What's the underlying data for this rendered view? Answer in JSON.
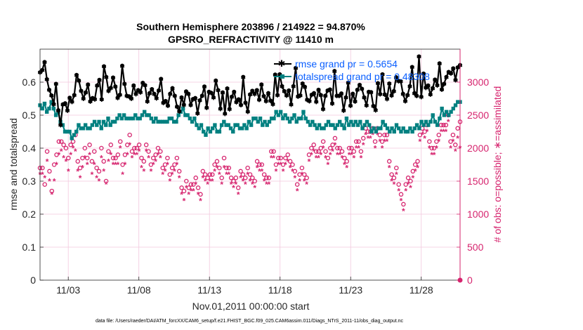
{
  "chart_data": {
    "type": "line",
    "title": "Southern Hemisphere 203896 / 214922 = 94.870%",
    "subtitle": "GPSRO_REFRACTIVITY @ 11410 m",
    "xlabel": "Nov.01,2011 00:00:00 start",
    "ylabel_left": "rmse and totalspread",
    "ylabel_right": "# of obs: o=possible; ∗=assimilated",
    "footnote": "data file: /Users/raeder/DAI/ATM_forcXX/CAM6_setup/f.e21.FHIST_BGC.f09_025.CAM6assim.011/Diags_NTrS_2011-11/obs_diag_output.nc",
    "x_range": [
      1,
      30.75
    ],
    "x_tick_values": [
      3,
      8,
      13,
      18,
      23,
      28
    ],
    "x_tick_labels": [
      "11/03",
      "11/08",
      "11/13",
      "11/18",
      "11/23",
      "11/28"
    ],
    "ylim_left": [
      0,
      0.7
    ],
    "left_ticks": [
      0,
      0.1,
      0.2,
      0.3,
      0.4,
      0.5,
      0.6
    ],
    "left_tick_labels": [
      "0",
      "0.1",
      "0.2",
      "0.3",
      "0.4",
      "0.5",
      "0.6"
    ],
    "ylim_right": [
      0,
      3500
    ],
    "right_ticks": [
      0,
      500,
      1000,
      1500,
      2000,
      2500,
      3000
    ],
    "right_tick_labels": [
      "0",
      "500",
      "1000",
      "1500",
      "2000",
      "2500",
      "3000"
    ],
    "grid": true,
    "legend_position": "top-right",
    "colors": {
      "rmse": "#000000",
      "spread": "#008080",
      "obs": "#d6246e",
      "legend_text": "#0a5fff"
    },
    "series": [
      {
        "name": "rmse grand pr = 0.5654",
        "axis": "left",
        "marker": "star-filled",
        "values": [
          0.63,
          0.637,
          0.661,
          0.609,
          0.577,
          0.56,
          0.534,
          0.595,
          0.515,
          0.471,
          0.533,
          0.536,
          0.515,
          0.553,
          0.541,
          0.561,
          0.622,
          0.605,
          0.574,
          0.551,
          0.569,
          0.593,
          0.542,
          0.552,
          0.549,
          0.59,
          0.607,
          0.548,
          0.648,
          0.616,
          0.574,
          0.583,
          0.614,
          0.587,
          0.553,
          0.562,
          0.65,
          0.595,
          0.559,
          0.557,
          0.551,
          0.59,
          0.565,
          0.576,
          0.57,
          0.598,
          0.591,
          0.542,
          0.567,
          0.579,
          0.565,
          0.552,
          0.575,
          0.61,
          0.538,
          0.543,
          0.529,
          0.565,
          0.582,
          0.559,
          0.526,
          0.512,
          0.554,
          0.532,
          0.572,
          0.565,
          0.531,
          0.549,
          0.552,
          0.506,
          0.545,
          0.559,
          0.587,
          0.523,
          0.571,
          0.568,
          0.554,
          0.605,
          0.576,
          0.52,
          0.569,
          0.505,
          0.581,
          0.519,
          0.556,
          0.571,
          0.54,
          0.548,
          0.531,
          0.616,
          0.538,
          0.511,
          0.563,
          0.574,
          0.565,
          0.576,
          0.547,
          0.593,
          0.558,
          0.543,
          0.567,
          0.544,
          0.534,
          0.623,
          0.561,
          0.624,
          0.588,
          0.573,
          0.56,
          0.575,
          0.533,
          0.588,
          0.643,
          0.557,
          0.56,
          0.596,
          0.586,
          0.547,
          0.543,
          0.562,
          0.567,
          0.541,
          0.577,
          0.561,
          0.519,
          0.559,
          0.575,
          0.578,
          0.536,
          0.634,
          0.559,
          0.559,
          0.566,
          0.515,
          0.554,
          0.599,
          0.529,
          0.565,
          0.542,
          0.577,
          0.592,
          0.58,
          0.554,
          0.53,
          0.571,
          0.57,
          0.528,
          0.516,
          0.597,
          0.564,
          0.624,
          0.563,
          0.55,
          0.596,
          0.56,
          0.573,
          0.615,
          0.604,
          0.603,
          0.565,
          0.543,
          0.561,
          0.588,
          0.646,
          0.567,
          0.559,
          0.678,
          0.556,
          0.626,
          0.584,
          0.59,
          0.563,
          0.582,
          0.608,
          0.591,
          0.657,
          0.578,
          0.595,
          0.616,
          0.631,
          0.627,
          0.642,
          0.607,
          0.645,
          0.652
        ]
      },
      {
        "name": "totalspread grand pr = 0.48308",
        "axis": "left",
        "marker": "square-filled",
        "values": [
          0.53,
          0.52,
          0.535,
          0.51,
          0.52,
          0.54,
          0.52,
          0.5,
          0.51,
          0.48,
          0.47,
          0.45,
          0.45,
          0.45,
          0.43,
          0.44,
          0.45,
          0.47,
          0.46,
          0.46,
          0.47,
          0.46,
          0.46,
          0.47,
          0.48,
          0.47,
          0.48,
          0.46,
          0.48,
          0.47,
          0.49,
          0.47,
          0.48,
          0.48,
          0.49,
          0.5,
          0.49,
          0.5,
          0.49,
          0.49,
          0.49,
          0.49,
          0.5,
          0.49,
          0.49,
          0.5,
          0.51,
          0.5,
          0.5,
          0.49,
          0.48,
          0.49,
          0.48,
          0.48,
          0.48,
          0.48,
          0.48,
          0.49,
          0.49,
          0.48,
          0.48,
          0.5,
          0.51,
          0.52,
          0.5,
          0.5,
          0.49,
          0.48,
          0.49,
          0.47,
          0.46,
          0.47,
          0.45,
          0.44,
          0.46,
          0.45,
          0.46,
          0.47,
          0.45,
          0.45,
          0.47,
          0.48,
          0.47,
          0.47,
          0.46,
          0.45,
          0.47,
          0.47,
          0.46,
          0.46,
          0.47,
          0.46,
          0.48,
          0.47,
          0.49,
          0.49,
          0.48,
          0.49,
          0.47,
          0.48,
          0.47,
          0.48,
          0.49,
          0.49,
          0.51,
          0.5,
          0.51,
          0.49,
          0.5,
          0.49,
          0.48,
          0.49,
          0.5,
          0.48,
          0.49,
          0.49,
          0.51,
          0.49,
          0.48,
          0.47,
          0.48,
          0.47,
          0.46,
          0.47,
          0.46,
          0.46,
          0.47,
          0.48,
          0.47,
          0.47,
          0.46,
          0.47,
          0.48,
          0.47,
          0.46,
          0.49,
          0.47,
          0.48,
          0.47,
          0.48,
          0.47,
          0.48,
          0.46,
          0.47,
          0.48,
          0.47,
          0.45,
          0.46,
          0.45,
          0.46,
          0.46,
          0.48,
          0.47,
          0.46,
          0.45,
          0.46,
          0.45,
          0.47,
          0.46,
          0.45,
          0.46,
          0.45,
          0.45,
          0.46,
          0.45,
          0.46,
          0.47,
          0.46,
          0.48,
          0.47,
          0.48,
          0.47,
          0.48,
          0.5,
          0.48,
          0.47,
          0.49,
          0.52,
          0.5,
          0.51,
          0.5,
          0.51,
          0.52,
          0.53,
          0.54,
          0.54
        ]
      },
      {
        "name": "possible",
        "axis": "right",
        "marker": "circle-open",
        "values": [
          1700,
          1700,
          1450,
          1950,
          1650,
          1350,
          1750,
          1900,
          2100,
          2100,
          2050,
          2000,
          1850,
          2050,
          2100,
          2200,
          1800,
          1700,
          1850,
          2000,
          1850,
          2050,
          1800,
          1950,
          1700,
          1650,
          2000,
          1800,
          1500,
          1950,
          2050,
          1850,
          1850,
          1900,
          2100,
          1750,
          1900,
          2050,
          2200,
          1950,
          2000,
          2000,
          2050,
          1850,
          1800,
          2050,
          1950,
          1750,
          1850,
          1900,
          2000,
          1950,
          1700,
          1750,
          1850,
          1600,
          1700,
          1750,
          1850,
          1650,
          1400,
          1350,
          1500,
          1400,
          1450,
          1450,
          1550,
          1400,
          1300,
          1650,
          1600,
          1550,
          1600,
          1600,
          1750,
          1800,
          1700,
          1550,
          1850,
          1700,
          1700,
          1550,
          1500,
          1550,
          1400,
          1650,
          1600,
          1550,
          1700,
          1600,
          1550,
          1500,
          1800,
          1750,
          1750,
          1600,
          1550,
          1550,
          1950,
          1950,
          1750,
          1850,
          1850,
          1750,
          1850,
          1900,
          1800,
          1750,
          1650,
          1450,
          1600,
          1700,
          1600,
          1550,
          1900,
          2000,
          2050,
          1950,
          1950,
          2000,
          2100,
          1950,
          1850,
          2000,
          2050,
          2150,
          2000,
          2000,
          1950,
          1850,
          1800,
          2000,
          2000,
          1950,
          2100,
          2100,
          1950,
          2150,
          2300,
          2250,
          2250,
          2300,
          2100,
          2300,
          2200,
          2100,
          2200,
          2200,
          1800,
          1600,
          1550,
          1700,
          1450,
          1300,
          1150,
          1450,
          1550,
          1500,
          1650,
          1750,
          1800,
          2200,
          2300,
          2250,
          2350,
          2100,
          2000,
          2000,
          2100,
          2200,
          2350,
          2350,
          2350,
          2500,
          2100,
          2200,
          2050,
          2300,
          2400
        ]
      },
      {
        "name": "assimilated",
        "axis": "right",
        "marker": "asterisk",
        "values": [
          1600,
          1600,
          1550,
          1800,
          1500,
          1300,
          1500,
          1750,
          1900,
          1950,
          1850,
          1800,
          1650,
          1900,
          2000,
          1950,
          1650,
          1550,
          1700,
          1850,
          1750,
          1900,
          1600,
          1750,
          1550,
          1500,
          1850,
          1650,
          1450,
          1800,
          1900,
          1750,
          1750,
          1750,
          2000,
          1600,
          1750,
          1900,
          2050,
          1850,
          1900,
          1900,
          1950,
          1700,
          1650,
          1950,
          1850,
          1650,
          1750,
          1800,
          1900,
          1850,
          1600,
          1650,
          1750,
          1500,
          1600,
          1650,
          1750,
          1550,
          1300,
          1200,
          1400,
          1300,
          1350,
          1350,
          1450,
          1300,
          1200,
          1550,
          1500,
          1450,
          1500,
          1500,
          1650,
          1700,
          1600,
          1450,
          1700,
          1600,
          1600,
          1450,
          1400,
          1450,
          1300,
          1550,
          1500,
          1450,
          1600,
          1500,
          1450,
          1400,
          1700,
          1650,
          1650,
          1500,
          1450,
          1450,
          1850,
          1850,
          1650,
          1750,
          1750,
          1650,
          1750,
          1800,
          1700,
          1650,
          1550,
          1350,
          1500,
          1600,
          1500,
          1450,
          1800,
          1900,
          1950,
          1850,
          1850,
          1900,
          2000,
          1850,
          1750,
          1900,
          1950,
          2050,
          1900,
          1900,
          1850,
          1750,
          1700,
          1900,
          1900,
          1850,
          2000,
          2000,
          1850,
          2050,
          2200,
          2150,
          2150,
          2200,
          2000,
          2200,
          2100,
          2000,
          2100,
          2100,
          1700,
          1500,
          1450,
          1600,
          1350,
          1200,
          1050,
          1350,
          1450,
          1400,
          1550,
          1650,
          1700,
          2100,
          2200,
          2150,
          2250,
          2000,
          1900,
          1900,
          2000,
          2100,
          2250,
          2250,
          2250,
          2400,
          2000,
          2100,
          1950,
          2150,
          2000
        ]
      }
    ]
  }
}
